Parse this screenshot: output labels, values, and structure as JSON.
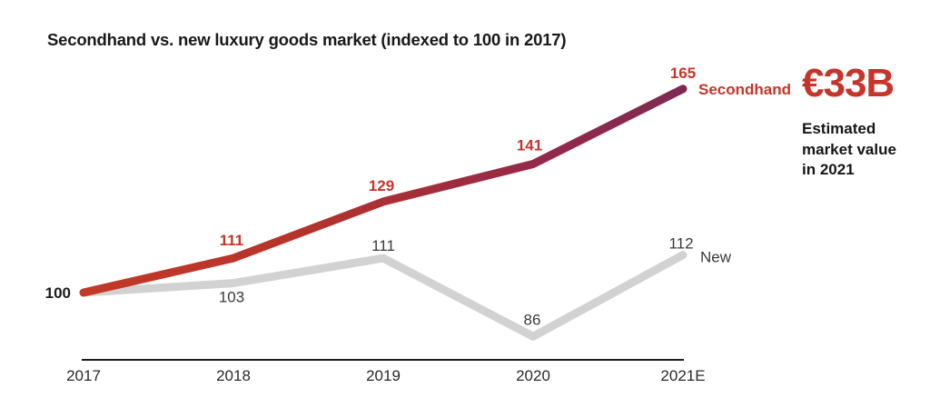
{
  "chart_data": {
    "type": "line",
    "title": "Secondhand vs. new luxury goods market (indexed to 100 in 2017)",
    "categories": [
      "2017",
      "2018",
      "2019",
      "2020",
      "2021E"
    ],
    "series": [
      {
        "name": "Secondhand",
        "values": [
          100,
          111,
          129,
          141,
          165
        ],
        "color_start": "#c43927",
        "color_end": "#7d2a52",
        "label_color": "#c5352b"
      },
      {
        "name": "New",
        "values": [
          100,
          103,
          111,
          86,
          112
        ],
        "color": "#d2d2d2",
        "label_color": "#3a3a3a"
      }
    ],
    "xlabel": "",
    "ylabel": "",
    "ylim": [
      80,
      170
    ],
    "grid": false,
    "legend_position": "line-end",
    "axis_color": "#1c1c1c"
  },
  "annotation": {
    "value": "€33B",
    "description_lines": [
      "Estimated",
      "market value",
      "in 2021"
    ],
    "color": "#c5352b"
  }
}
